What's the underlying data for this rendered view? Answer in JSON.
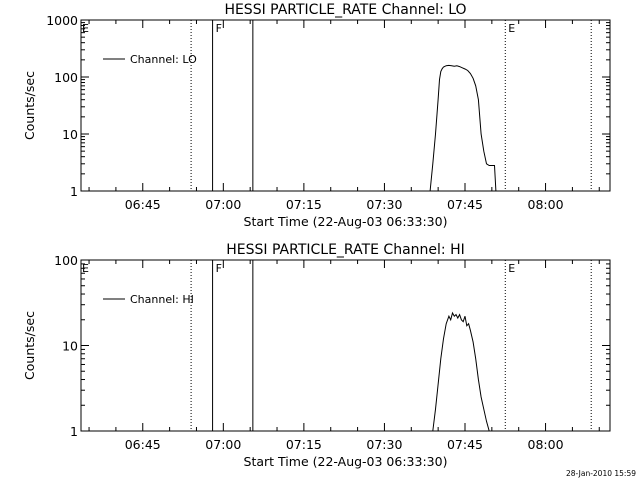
{
  "footer": {
    "timestamp": "28-Jan-2010 15:59"
  },
  "chart_data": [
    {
      "type": "line",
      "title": "HESSI PARTICLE_RATE Channel: LO",
      "xlabel": "Start Time (22-Aug-03 06:33:30)",
      "ylabel": "Counts/sec",
      "yscale": "log",
      "xlim": [
        "06:33:30",
        "08:12:00"
      ],
      "ylim": [
        1,
        1000
      ],
      "x_ticks": [
        "06:45",
        "07:00",
        "07:15",
        "07:30",
        "07:45",
        "08:00"
      ],
      "y_ticks": [
        "1",
        "10",
        "100",
        "1000"
      ],
      "legend": {
        "entries": [
          "Channel: LO"
        ],
        "position": "top-left"
      },
      "series": [
        {
          "name": "Channel: LO",
          "x": [
            "07:38:30",
            "07:39:00",
            "07:39:30",
            "07:40:00",
            "07:40:15",
            "07:40:30",
            "07:40:45",
            "07:41:00",
            "07:41:30",
            "07:42:00",
            "07:42:30",
            "07:43:00",
            "07:43:30",
            "07:44:00",
            "07:44:30",
            "07:45:00",
            "07:45:30",
            "07:46:00",
            "07:46:30",
            "07:47:00",
            "07:47:30",
            "07:48:00",
            "07:48:30",
            "07:49:00",
            "07:49:30",
            "07:50:00",
            "07:50:30",
            "07:50:45"
          ],
          "values": [
            1,
            3,
            10,
            40,
            90,
            125,
            140,
            150,
            158,
            160,
            158,
            155,
            157,
            152,
            145,
            138,
            130,
            115,
            95,
            70,
            40,
            10,
            5,
            3,
            2.8,
            2.8,
            2.8,
            1
          ]
        }
      ],
      "markers": [
        {
          "time": "06:54:00",
          "style": "dotted",
          "label": ""
        },
        {
          "time": "06:58:00",
          "style": "solid",
          "label": "F"
        },
        {
          "time": "07:05:30",
          "style": "solid",
          "label": ""
        },
        {
          "time": "07:52:30",
          "style": "dotted",
          "label": "E"
        },
        {
          "time": "08:08:30",
          "style": "dotted",
          "label": ""
        }
      ],
      "left_marker_label": "E"
    },
    {
      "type": "line",
      "title": "HESSI PARTICLE_RATE Channel: HI",
      "xlabel": "Start Time (22-Aug-03 06:33:30)",
      "ylabel": "Counts/sec",
      "yscale": "log",
      "xlim": [
        "06:33:30",
        "08:12:00"
      ],
      "ylim": [
        1,
        100
      ],
      "x_ticks": [
        "06:45",
        "07:00",
        "07:15",
        "07:30",
        "07:45",
        "08:00"
      ],
      "y_ticks": [
        "1",
        "10",
        "100"
      ],
      "legend": {
        "entries": [
          "Channel: HI"
        ],
        "position": "top-left"
      },
      "series": [
        {
          "name": "Channel: HI",
          "x": [
            "07:39:00",
            "07:39:30",
            "07:40:00",
            "07:40:30",
            "07:41:00",
            "07:41:30",
            "07:42:00",
            "07:42:20",
            "07:42:40",
            "07:43:00",
            "07:43:20",
            "07:43:40",
            "07:44:00",
            "07:44:20",
            "07:44:40",
            "07:45:00",
            "07:45:20",
            "07:45:40",
            "07:46:00",
            "07:46:30",
            "07:47:00",
            "07:47:30",
            "07:48:00",
            "07:48:30",
            "07:49:00",
            "07:49:30"
          ],
          "values": [
            1,
            1.8,
            3.5,
            7,
            12,
            18,
            22,
            20,
            24,
            22,
            23,
            21,
            23,
            20,
            19,
            22,
            17,
            18,
            15,
            11,
            7,
            4,
            2.5,
            1.8,
            1.3,
            1
          ]
        }
      ],
      "markers": [
        {
          "time": "06:54:00",
          "style": "dotted",
          "label": ""
        },
        {
          "time": "06:58:00",
          "style": "solid",
          "label": "F"
        },
        {
          "time": "07:05:30",
          "style": "solid",
          "label": ""
        },
        {
          "time": "07:52:30",
          "style": "dotted",
          "label": "E"
        },
        {
          "time": "08:08:30",
          "style": "dotted",
          "label": ""
        }
      ],
      "left_marker_label": "E"
    }
  ]
}
